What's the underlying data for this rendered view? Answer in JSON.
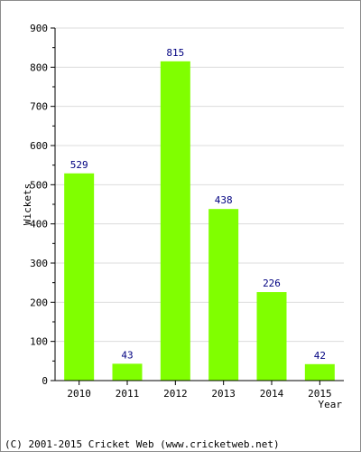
{
  "chart_data": {
    "type": "bar",
    "categories": [
      "2010",
      "2011",
      "2012",
      "2013",
      "2014",
      "2015"
    ],
    "values": [
      529,
      43,
      815,
      438,
      226,
      42
    ],
    "data_labels": [
      "529",
      "43",
      "815",
      "438",
      "226",
      "42"
    ],
    "xlabel": "Year",
    "ylabel": "Wickets",
    "ylim": [
      0,
      900
    ],
    "y_ticks": [
      0,
      100,
      200,
      300,
      400,
      500,
      600,
      700,
      800,
      900
    ],
    "y_tick_labels": [
      "0",
      "100",
      "200",
      "300",
      "400",
      "500",
      "600",
      "700",
      "800",
      "900"
    ],
    "grid": true,
    "legend": "none",
    "colors": {
      "bar": "#80ff00",
      "value_label": "#000080",
      "grid": "#dcdcdc",
      "axis": "#000000",
      "text": "#000000"
    }
  },
  "footer": {
    "copyright": "(C) 2001-2015 Cricket Web (www.cricketweb.net)"
  }
}
